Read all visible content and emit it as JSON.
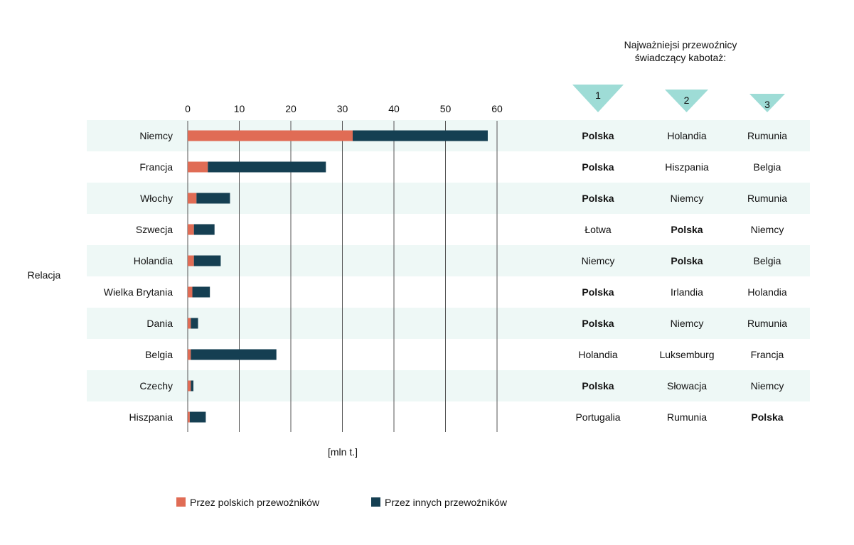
{
  "chart_data": {
    "type": "bar",
    "orientation": "horizontal",
    "stacked": true,
    "ylabel": "Relacja",
    "xlabel": "[mln t.]",
    "xlim": [
      0,
      60
    ],
    "xticks": [
      0,
      10,
      20,
      30,
      40,
      50,
      60
    ],
    "grid": true,
    "legend_position": "bottom",
    "categories": [
      "Niemcy",
      "Francja",
      "Włochy",
      "Szwecja",
      "Holandia",
      "Wielka Brytania",
      "Dania",
      "Belgia",
      "Czechy",
      "Hiszpania"
    ],
    "series": [
      {
        "name": "Przez polskich przewoźników",
        "color": "#e06c55",
        "values": [
          32,
          3.9,
          1.7,
          1.2,
          1.2,
          0.9,
          0.6,
          0.6,
          0.6,
          0.4
        ]
      },
      {
        "name": "Przez innych przewoźników",
        "color": "#153f52",
        "values": [
          26.2,
          22.9,
          6.5,
          4.0,
          5.2,
          3.4,
          1.4,
          16.6,
          0.5,
          3.1
        ]
      }
    ],
    "table": {
      "title_line1": "Najważniejsi przewoźnicy",
      "title_line2": "świadczący kabotaż:",
      "ranks": [
        "1",
        "2",
        "3"
      ],
      "rank_color": "#9edcd6",
      "rows": [
        [
          "Polska",
          "Holandia",
          "Rumunia"
        ],
        [
          "Polska",
          "Hiszpania",
          "Belgia"
        ],
        [
          "Polska",
          "Niemcy",
          "Rumunia"
        ],
        [
          "Łotwa",
          "Polska",
          "Niemcy"
        ],
        [
          "Niemcy",
          "Polska",
          "Belgia"
        ],
        [
          "Polska",
          "Irlandia",
          "Holandia"
        ],
        [
          "Polska",
          "Niemcy",
          "Rumunia"
        ],
        [
          "Holandia",
          "Luksemburg",
          "Francja"
        ],
        [
          "Polska",
          "Słowacja",
          "Niemcy"
        ],
        [
          "Portugalia",
          "Rumunia",
          "Polska"
        ]
      ],
      "highlight": "Polska"
    },
    "stripe_color": "#eef8f6"
  }
}
